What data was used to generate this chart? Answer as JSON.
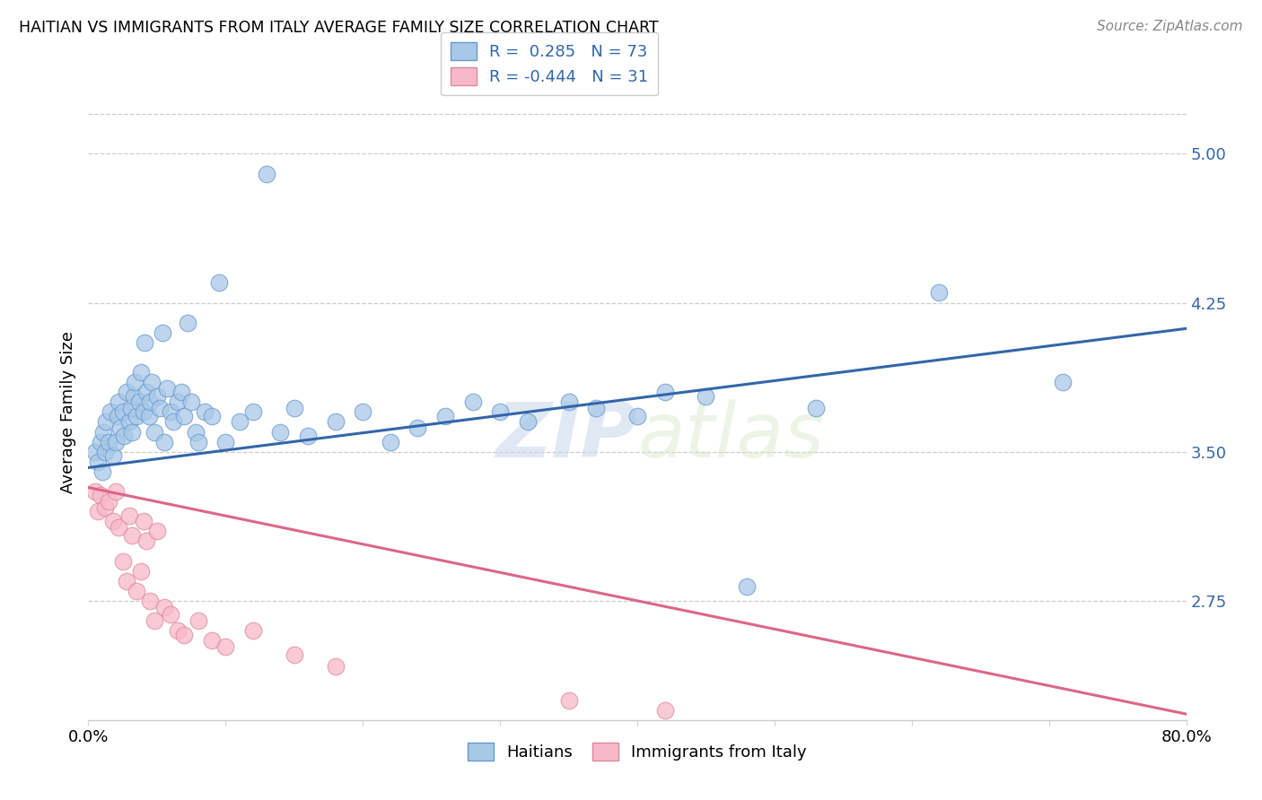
{
  "title": "HAITIAN VS IMMIGRANTS FROM ITALY AVERAGE FAMILY SIZE CORRELATION CHART",
  "source": "Source: ZipAtlas.com",
  "ylabel": "Average Family Size",
  "ytick_values": [
    2.75,
    3.5,
    4.25,
    5.0
  ],
  "xlim": [
    0.0,
    0.8
  ],
  "ylim": [
    2.15,
    5.25
  ],
  "legend_blue_R": "R =  0.285",
  "legend_blue_N": "N = 73",
  "legend_pink_R": "R = -0.444",
  "legend_pink_N": "N = 31",
  "legend_blue_label": "Haitians",
  "legend_pink_label": "Immigrants from Italy",
  "blue_color": "#a8c8e8",
  "blue_edge_color": "#6699cc",
  "blue_line_color": "#3366aa",
  "pink_color": "#f8b8cc",
  "pink_edge_color": "#dd8899",
  "pink_line_color": "#dd6688",
  "blue_line_y0": 3.42,
  "blue_line_y1": 4.12,
  "pink_line_y0": 3.32,
  "pink_line_y1": 2.18,
  "blue_x": [
    0.005,
    0.007,
    0.009,
    0.01,
    0.011,
    0.012,
    0.013,
    0.015,
    0.016,
    0.018,
    0.02,
    0.021,
    0.022,
    0.023,
    0.025,
    0.026,
    0.028,
    0.03,
    0.031,
    0.032,
    0.033,
    0.034,
    0.035,
    0.037,
    0.038,
    0.04,
    0.041,
    0.042,
    0.044,
    0.045,
    0.046,
    0.048,
    0.05,
    0.052,
    0.054,
    0.055,
    0.057,
    0.06,
    0.062,
    0.065,
    0.068,
    0.07,
    0.072,
    0.075,
    0.078,
    0.08,
    0.085,
    0.09,
    0.095,
    0.1,
    0.11,
    0.12,
    0.13,
    0.14,
    0.15,
    0.16,
    0.18,
    0.2,
    0.22,
    0.24,
    0.26,
    0.28,
    0.3,
    0.32,
    0.35,
    0.37,
    0.4,
    0.42,
    0.45,
    0.48,
    0.53,
    0.62,
    0.71
  ],
  "blue_y": [
    3.5,
    3.45,
    3.55,
    3.4,
    3.6,
    3.5,
    3.65,
    3.55,
    3.7,
    3.48,
    3.55,
    3.68,
    3.75,
    3.62,
    3.7,
    3.58,
    3.8,
    3.65,
    3.72,
    3.6,
    3.78,
    3.85,
    3.68,
    3.75,
    3.9,
    3.7,
    4.05,
    3.8,
    3.68,
    3.75,
    3.85,
    3.6,
    3.78,
    3.72,
    4.1,
    3.55,
    3.82,
    3.7,
    3.65,
    3.75,
    3.8,
    3.68,
    4.15,
    3.75,
    3.6,
    3.55,
    3.7,
    3.68,
    4.35,
    3.55,
    3.65,
    3.7,
    4.9,
    3.6,
    3.72,
    3.58,
    3.65,
    3.7,
    3.55,
    3.62,
    3.68,
    3.75,
    3.7,
    3.65,
    3.75,
    3.72,
    3.68,
    3.8,
    3.78,
    2.82,
    3.72,
    4.3,
    3.85
  ],
  "pink_x": [
    0.005,
    0.007,
    0.009,
    0.012,
    0.015,
    0.018,
    0.02,
    0.022,
    0.025,
    0.028,
    0.03,
    0.032,
    0.035,
    0.038,
    0.04,
    0.042,
    0.045,
    0.048,
    0.05,
    0.055,
    0.06,
    0.065,
    0.07,
    0.08,
    0.09,
    0.1,
    0.12,
    0.15,
    0.18,
    0.35,
    0.42
  ],
  "pink_y": [
    3.3,
    3.2,
    3.28,
    3.22,
    3.25,
    3.15,
    3.3,
    3.12,
    2.95,
    2.85,
    3.18,
    3.08,
    2.8,
    2.9,
    3.15,
    3.05,
    2.75,
    2.65,
    3.1,
    2.72,
    2.68,
    2.6,
    2.58,
    2.65,
    2.55,
    2.52,
    2.6,
    2.48,
    2.42,
    2.25,
    2.2
  ]
}
